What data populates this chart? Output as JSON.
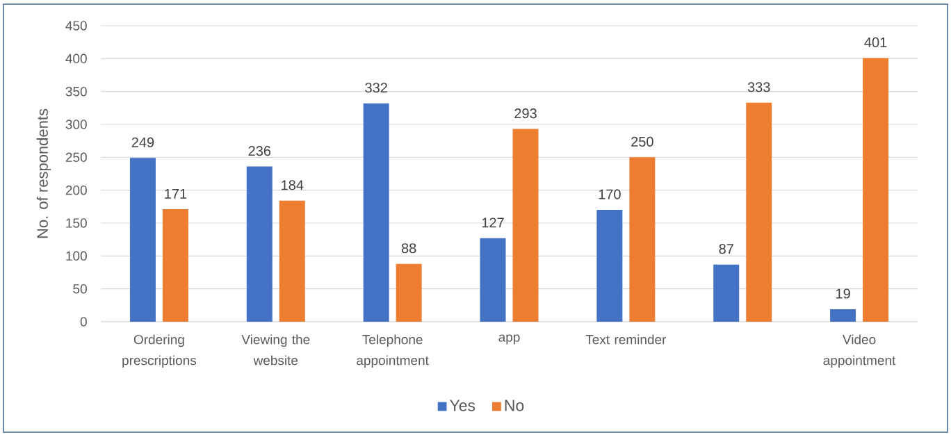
{
  "chart_data": {
    "type": "bar",
    "ylabel": "No. of respondents",
    "categories": [
      "Ordering prescriptions",
      "Viewing the website",
      "Telephone appointment",
      "app",
      "Text reminder",
      null,
      "Video appointment"
    ],
    "series": [
      {
        "name": "Yes",
        "color": "#4472c4",
        "values": [
          249,
          236,
          332,
          127,
          170,
          87,
          19
        ]
      },
      {
        "name": "No",
        "color": "#ed7d31",
        "values": [
          171,
          184,
          88,
          293,
          250,
          333,
          401
        ]
      }
    ],
    "ylim": [
      0,
      450
    ],
    "yticks": [
      0,
      50,
      100,
      150,
      200,
      250,
      300,
      350,
      400,
      450
    ],
    "grid": "y",
    "legend": "bottom",
    "data_labels": true
  }
}
